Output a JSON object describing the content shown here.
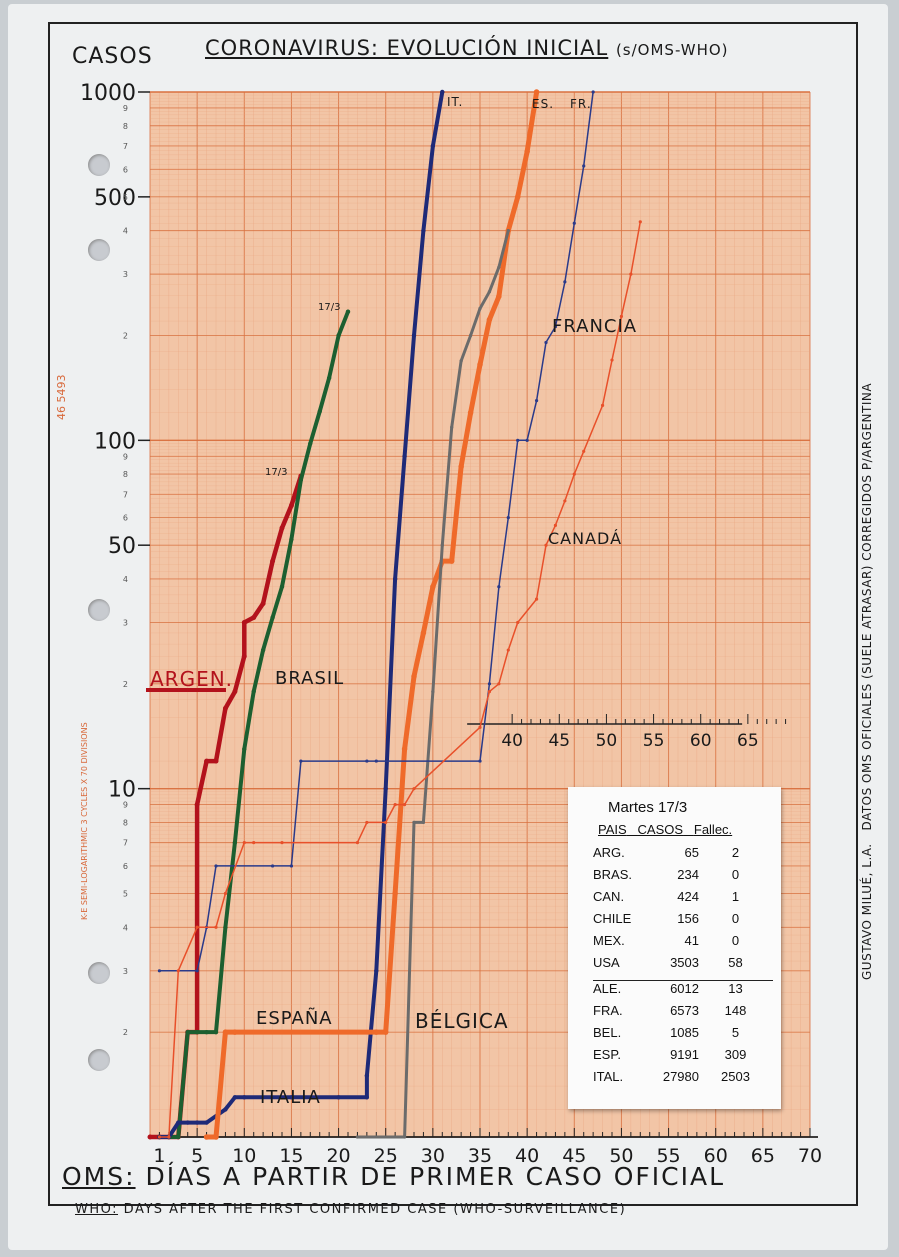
{
  "page": {
    "title": "CORONAVIRUS: EVOLUCIÓN INICIAL",
    "title_source": "(s/OMS-WHO)",
    "y_unit": "CASOS",
    "x_label_es_prefix": "OMS:",
    "x_label_es": "DÍAS A PARTIR DE PRIMER CASO OFICIAL",
    "x_label_en_prefix": "WHO:",
    "x_label_en": "DAYS AFTER THE FIRST CONFIRMED CASE (WHO-SURVEILLANCE)",
    "side_note": "DATOS OMS OFICIALES (SUELE ATRASAR) CORREGIDOS P/ARGENTINA",
    "author": "GUSTAVO MILUÉ, L.A.",
    "paper_code": "46 5493",
    "paper_brand": "K-E SEMI-LOGARITHMIC 3 CYCLES X 70 DIVISIONS",
    "date_mark_1": "17/3",
    "date_mark_2": "17/3"
  },
  "summary_table": {
    "title": "Martes 17/3",
    "headers": [
      "PAIS",
      "CASOS",
      "Fallec."
    ],
    "rows": [
      [
        "ARG.",
        "65",
        "2"
      ],
      [
        "BRAS.",
        "234",
        "0"
      ],
      [
        "CAN.",
        "424",
        "1"
      ],
      [
        "CHILE",
        "156",
        "0"
      ],
      [
        "MEX.",
        "41",
        "0"
      ],
      [
        "USA",
        "3503",
        "58"
      ],
      [
        "ALE.",
        "6012",
        "13"
      ],
      [
        "FRA.",
        "6573",
        "148"
      ],
      [
        "BEL.",
        "1085",
        "5"
      ],
      [
        "ESP.",
        "9191",
        "309"
      ],
      [
        "ITAL.",
        "27980",
        "2503"
      ]
    ]
  },
  "chart_data": {
    "type": "line",
    "title": "CORONAVIRUS: EVOLUCIÓN INICIAL",
    "xlabel": "DÍAS A PARTIR DE PRIMER CASO OFICIAL",
    "ylabel": "CASOS",
    "yscale": "log",
    "ylim": [
      1,
      1000
    ],
    "xlim": [
      0,
      70
    ],
    "x_ticks": [
      1,
      5,
      10,
      15,
      20,
      25,
      30,
      35,
      40,
      45,
      50,
      55,
      60,
      65,
      70
    ],
    "y_major_labels": [
      {
        "value": 10,
        "label": "10"
      },
      {
        "value": 50,
        "label": "50"
      },
      {
        "value": 100,
        "label": "100"
      },
      {
        "value": 500,
        "label": "500"
      },
      {
        "value": 1000,
        "label": "1000"
      }
    ],
    "y_minor_labels": [
      "2",
      "3",
      "4",
      "5",
      "6",
      "7",
      "8",
      "9"
    ],
    "inset_axis": {
      "ticks": [
        40,
        45,
        50,
        55,
        60,
        65
      ]
    },
    "grid": true,
    "colors": {
      "paper": "#f2c5a6",
      "grid_minor": "#e8a27c",
      "grid_major": "#d9703f",
      "argentina": "#b3121c",
      "brasil": "#1c5f30",
      "italia": "#1e2a78",
      "espana": "#ef6a2a",
      "belgica": "#6b6b6b",
      "francia": "#2a3a8a",
      "canada": "#e8502a"
    },
    "series": [
      {
        "name": "ARGEN.",
        "key": "argentina",
        "width": 4.5,
        "points": [
          [
            0,
            1
          ],
          [
            1,
            1
          ],
          [
            2,
            1
          ],
          [
            3,
            1
          ],
          [
            4,
            2
          ],
          [
            5,
            2
          ],
          [
            5,
            9
          ],
          [
            6,
            12
          ],
          [
            7,
            12
          ],
          [
            8,
            17
          ],
          [
            9,
            19
          ],
          [
            10,
            24
          ],
          [
            10,
            30
          ],
          [
            11,
            31
          ],
          [
            12,
            34
          ],
          [
            13,
            45
          ],
          [
            14,
            56
          ],
          [
            15,
            65
          ],
          [
            16,
            79
          ]
        ]
      },
      {
        "name": "BRASIL",
        "key": "brasil",
        "width": 4,
        "points": [
          [
            1,
            1
          ],
          [
            2,
            1
          ],
          [
            3,
            1
          ],
          [
            4,
            2
          ],
          [
            5,
            2
          ],
          [
            6,
            2
          ],
          [
            7,
            2
          ],
          [
            8,
            4
          ],
          [
            9,
            7
          ],
          [
            10,
            13
          ],
          [
            11,
            19
          ],
          [
            12,
            25
          ],
          [
            13,
            31
          ],
          [
            14,
            38
          ],
          [
            15,
            52
          ],
          [
            16,
            77
          ],
          [
            17,
            98
          ],
          [
            18,
            121
          ],
          [
            19,
            151
          ],
          [
            20,
            200
          ],
          [
            21,
            234
          ]
        ]
      },
      {
        "name": "ITALIA",
        "key": "italia",
        "width": 4,
        "points": [
          [
            1,
            1
          ],
          [
            2,
            1
          ],
          [
            3,
            1.1
          ],
          [
            4,
            1.1
          ],
          [
            5,
            1.1
          ],
          [
            6,
            1.1
          ],
          [
            8,
            1.2
          ],
          [
            9,
            1.3
          ],
          [
            10,
            1.3
          ],
          [
            15,
            1.3
          ],
          [
            20,
            1.3
          ],
          [
            23,
            1.3
          ],
          [
            23,
            1.5
          ],
          [
            24,
            3
          ],
          [
            25,
            10
          ],
          [
            26,
            40
          ],
          [
            27,
            90
          ],
          [
            28,
            200
          ],
          [
            29,
            400
          ],
          [
            30,
            700
          ],
          [
            31,
            1000
          ]
        ]
      },
      {
        "name": "ESPAÑA",
        "key": "espana",
        "width": 5,
        "points": [
          [
            6,
            1
          ],
          [
            7,
            1
          ],
          [
            8,
            2
          ],
          [
            9,
            2
          ],
          [
            24,
            2
          ],
          [
            25,
            2
          ],
          [
            26,
            5
          ],
          [
            27,
            13
          ],
          [
            28,
            21
          ],
          [
            29,
            28
          ],
          [
            30,
            38
          ],
          [
            31,
            45
          ],
          [
            32,
            45
          ],
          [
            33,
            84
          ],
          [
            34,
            120
          ],
          [
            35,
            165
          ],
          [
            36,
            222
          ],
          [
            37,
            259
          ],
          [
            38,
            400
          ],
          [
            39,
            500
          ],
          [
            40,
            674
          ],
          [
            41,
            1000
          ]
        ]
      },
      {
        "name": "BÉLGICA",
        "key": "belgica",
        "width": 3,
        "points": [
          [
            22,
            1
          ],
          [
            27,
            1
          ],
          [
            28,
            8
          ],
          [
            29,
            8
          ],
          [
            30,
            19
          ],
          [
            31,
            50
          ],
          [
            32,
            109
          ],
          [
            33,
            169
          ],
          [
            34,
            200
          ],
          [
            35,
            239
          ],
          [
            36,
            267
          ],
          [
            37,
            314
          ],
          [
            38,
            400
          ]
        ]
      },
      {
        "name": "FRANCIA",
        "key": "francia",
        "width": 1.5,
        "points": [
          [
            1,
            3
          ],
          [
            5,
            3
          ],
          [
            6,
            4
          ],
          [
            7,
            6
          ],
          [
            13,
            6
          ],
          [
            15,
            6
          ],
          [
            16,
            12
          ],
          [
            23,
            12
          ],
          [
            24,
            12
          ],
          [
            35,
            12
          ],
          [
            36,
            20
          ],
          [
            37,
            38
          ],
          [
            38,
            60
          ],
          [
            39,
            100
          ],
          [
            40,
            100
          ],
          [
            41,
            130
          ],
          [
            42,
            191
          ],
          [
            43,
            212
          ],
          [
            44,
            285
          ],
          [
            45,
            420
          ],
          [
            46,
            613
          ],
          [
            47,
            1000
          ]
        ]
      },
      {
        "name": "CANADÁ",
        "key": "canada",
        "width": 1.5,
        "points": [
          [
            1,
            1
          ],
          [
            2,
            1
          ],
          [
            3,
            3
          ],
          [
            5,
            4
          ],
          [
            7,
            4
          ],
          [
            8,
            5
          ],
          [
            10,
            7
          ],
          [
            11,
            7
          ],
          [
            14,
            7
          ],
          [
            22,
            7
          ],
          [
            23,
            8
          ],
          [
            25,
            8
          ],
          [
            26,
            9
          ],
          [
            27,
            9
          ],
          [
            28,
            10
          ],
          [
            35,
            15
          ],
          [
            36,
            19
          ],
          [
            37,
            20
          ],
          [
            38,
            25
          ],
          [
            39,
            30
          ],
          [
            41,
            35
          ],
          [
            42,
            50
          ],
          [
            43,
            57
          ],
          [
            44,
            67
          ],
          [
            45,
            80
          ],
          [
            46,
            93
          ],
          [
            48,
            126
          ],
          [
            49,
            170
          ],
          [
            50,
            227
          ],
          [
            51,
            300
          ],
          [
            52,
            424
          ]
        ]
      }
    ],
    "labels": {
      "argentina": "ARGEN.",
      "brasil": "BRASIL",
      "espana": "ESPAÑA",
      "italia": "ITALIA",
      "belgica": "BÉLGICA",
      "francia": "FRANCIA",
      "canada": "CANADÁ",
      "top_it": "IT.",
      "top_es": "ES.",
      "top_fr": "FR."
    }
  }
}
